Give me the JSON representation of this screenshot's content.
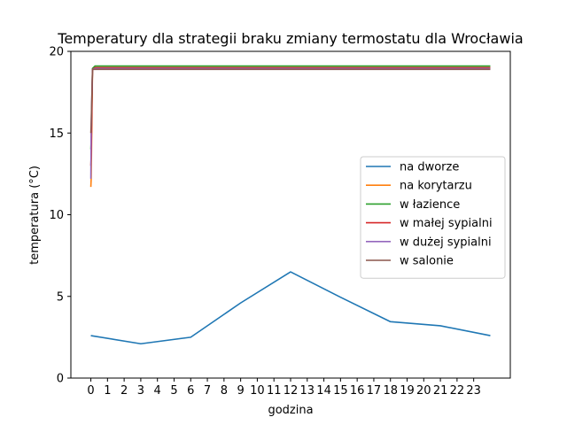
{
  "chart_data": {
    "type": "line",
    "title": "Temperatury dla strategii braku zmiany termostatu dla Wrocławia",
    "xlabel": "godzina",
    "ylabel": "temperatura (°C)",
    "xlim": [
      -1.2,
      25.2
    ],
    "ylim": [
      0,
      20
    ],
    "xticks": [
      0,
      1,
      2,
      3,
      4,
      5,
      6,
      7,
      8,
      9,
      10,
      11,
      12,
      13,
      14,
      15,
      16,
      17,
      18,
      19,
      20,
      21,
      22,
      23
    ],
    "yticks": [
      0,
      5,
      10,
      15,
      20
    ],
    "grid": false,
    "legend_position": "center-right",
    "series": [
      {
        "name": "na dworze",
        "color": "#1f77b4",
        "x": [
          0,
          3,
          6,
          9,
          12,
          15,
          18,
          21,
          24
        ],
        "y": [
          2.6,
          2.1,
          2.5,
          4.6,
          6.5,
          4.95,
          3.45,
          3.2,
          2.6
        ]
      },
      {
        "name": "na korytarzu",
        "color": "#ff7f0e",
        "x": [
          0,
          0.02,
          0.1,
          0.25,
          24
        ],
        "y": [
          11.7,
          12.2,
          18.9,
          19.0,
          19.0
        ]
      },
      {
        "name": "w łazience",
        "color": "#2ca02c",
        "x": [
          0,
          0.02,
          0.1,
          0.25,
          24
        ],
        "y": [
          14.0,
          14.5,
          18.95,
          19.1,
          19.1
        ]
      },
      {
        "name": "w małej sypialni",
        "color": "#d62728",
        "x": [
          0,
          0.02,
          0.1,
          0.25,
          24
        ],
        "y": [
          13.0,
          13.5,
          18.9,
          19.0,
          19.0
        ]
      },
      {
        "name": "w dużej sypialni",
        "color": "#9467bd",
        "x": [
          0,
          0.02,
          0.1,
          0.25,
          24
        ],
        "y": [
          12.2,
          15.3,
          18.9,
          18.95,
          18.95
        ]
      },
      {
        "name": "w salonie",
        "color": "#8c564b",
        "x": [
          0,
          0.02,
          0.1,
          0.25,
          24
        ],
        "y": [
          15.0,
          15.5,
          18.9,
          18.9,
          18.9
        ]
      }
    ]
  }
}
